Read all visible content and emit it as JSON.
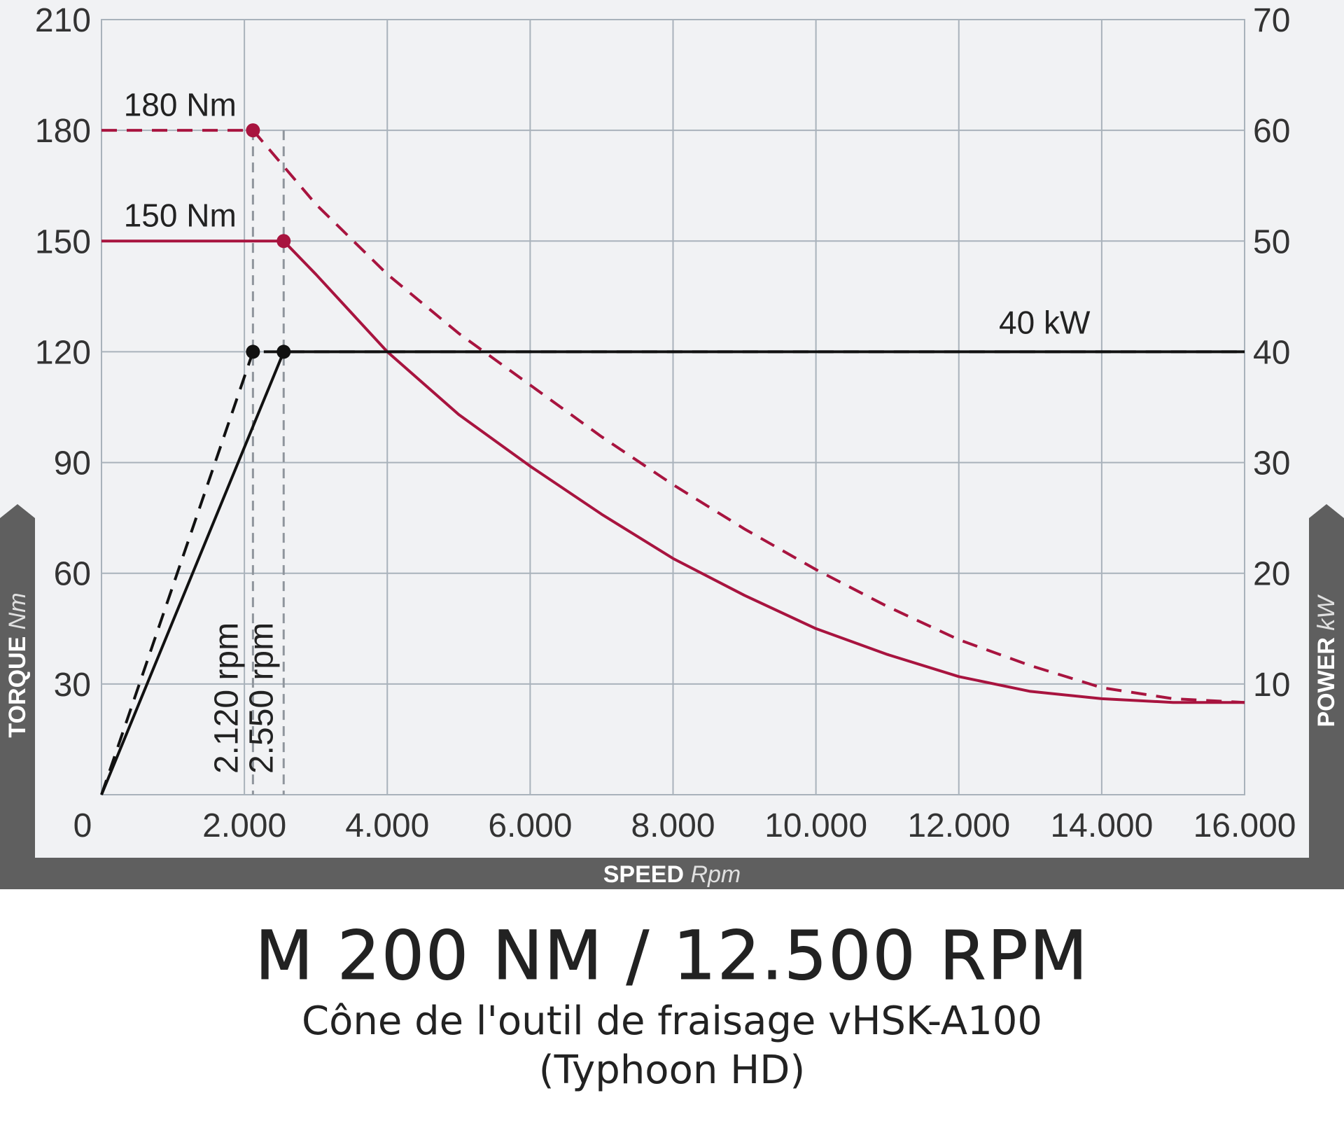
{
  "chart_data": {
    "type": "line",
    "title": "M 200 NM / 12.500 RPM",
    "subtitle_lines": [
      "Cône de l'outil de fraisage vHSK-A100",
      "(Typhoon HD)"
    ],
    "x_axis": {
      "label": "SPEED",
      "unit": "Rpm",
      "range": [
        0,
        16000
      ],
      "ticks": [
        0,
        2000,
        4000,
        6000,
        8000,
        10000,
        12000,
        14000,
        16000
      ],
      "tick_labels": [
        "0",
        "2.000",
        "4.000",
        "6.000",
        "8.000",
        "10.000",
        "12.000",
        "14.000",
        "16.000"
      ]
    },
    "y_axis_left": {
      "label": "TORQUE",
      "unit": "Nm",
      "range": [
        0,
        210
      ],
      "ticks": [
        30,
        60,
        90,
        120,
        150,
        180,
        210
      ],
      "tick_labels": [
        "30",
        "60",
        "90",
        "120",
        "150",
        "180",
        "210"
      ]
    },
    "y_axis_right": {
      "label": "POWER",
      "unit": "kW",
      "range": [
        0,
        70
      ],
      "ticks": [
        10,
        20,
        30,
        40,
        50,
        60,
        70
      ],
      "tick_labels": [
        "10",
        "20",
        "30",
        "40",
        "50",
        "60",
        "70"
      ]
    },
    "grid": true,
    "series": [
      {
        "axis": "left",
        "style": "dashed",
        "color": "#a8143f",
        "points": [
          [
            0,
            180
          ],
          [
            2120,
            180
          ],
          [
            3000,
            160
          ],
          [
            4000,
            141
          ],
          [
            5000,
            125
          ],
          [
            6000,
            111
          ],
          [
            7000,
            97
          ],
          [
            8000,
            84
          ],
          [
            9000,
            72
          ],
          [
            10000,
            61
          ],
          [
            11000,
            51
          ],
          [
            12000,
            42
          ],
          [
            13000,
            35
          ],
          [
            14000,
            29
          ],
          [
            15000,
            26
          ],
          [
            16000,
            25
          ]
        ]
      },
      {
        "axis": "left",
        "style": "solid",
        "color": "#a8143f",
        "points": [
          [
            0,
            150
          ],
          [
            2550,
            150
          ],
          [
            3000,
            141
          ],
          [
            4000,
            120
          ],
          [
            5000,
            103
          ],
          [
            6000,
            89
          ],
          [
            7000,
            76
          ],
          [
            8000,
            64
          ],
          [
            9000,
            54
          ],
          [
            10000,
            45
          ],
          [
            11000,
            38
          ],
          [
            12000,
            32
          ],
          [
            13000,
            28
          ],
          [
            14000,
            26
          ],
          [
            15000,
            25
          ],
          [
            16000,
            25
          ]
        ]
      },
      {
        "axis": "right",
        "style": "dashed",
        "color": "#111111",
        "points": [
          [
            0,
            0
          ],
          [
            2120,
            40
          ],
          [
            16000,
            40
          ]
        ]
      },
      {
        "axis": "right",
        "style": "solid",
        "color": "#111111",
        "points": [
          [
            0,
            0
          ],
          [
            2550,
            40
          ],
          [
            16000,
            40
          ]
        ]
      }
    ],
    "markers": [
      {
        "x": 2120,
        "y": 180,
        "axis": "left",
        "color": "#a8143f"
      },
      {
        "x": 2550,
        "y": 150,
        "axis": "left",
        "color": "#a8143f"
      },
      {
        "x": 2120,
        "y": 40,
        "axis": "right",
        "color": "#111111"
      },
      {
        "x": 2550,
        "y": 40,
        "axis": "right",
        "color": "#111111"
      }
    ],
    "reference_lines": [
      {
        "x": 2120,
        "label": "2.120 rpm"
      },
      {
        "x": 2550,
        "label": "2.550 rpm"
      }
    ],
    "annotations": [
      {
        "text": "180 Nm",
        "x": 1100,
        "y": 182,
        "axis": "left"
      },
      {
        "text": "150 Nm",
        "x": 1100,
        "y": 152,
        "axis": "left"
      },
      {
        "text": "40 kW",
        "x": 13200,
        "y": 41,
        "axis": "right"
      }
    ],
    "colors": {
      "torque": "#a8143f",
      "power": "#111111",
      "grid": "#a9b2bb",
      "plot_background": "#f1f2f4",
      "axis_band": "#5f5f5f"
    }
  }
}
